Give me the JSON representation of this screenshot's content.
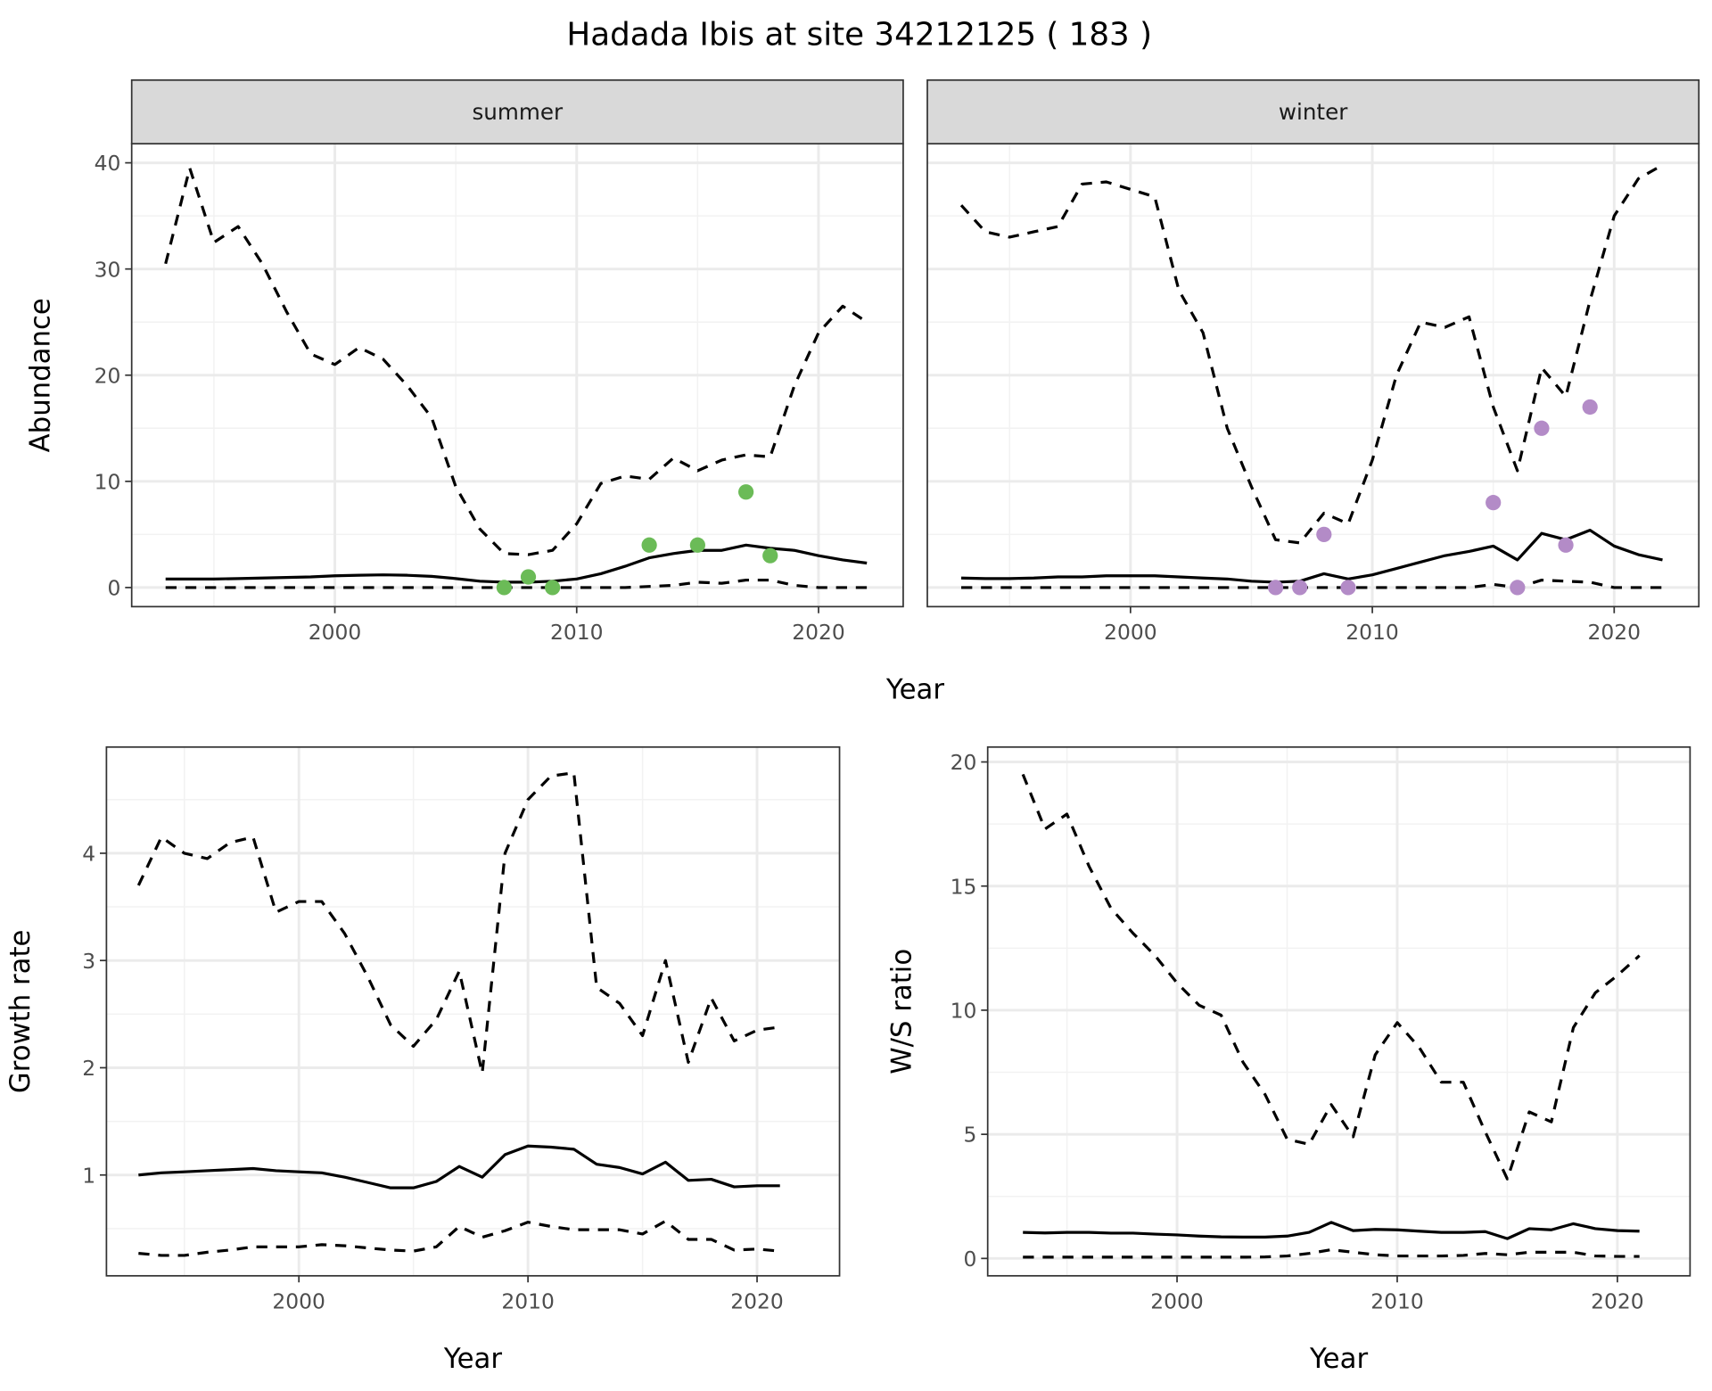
{
  "title": "Hadada Ibis at site 34212125 ( 183 )",
  "chart_data": [
    {
      "type": "line",
      "facet": "summer",
      "xlabel": "Year",
      "ylabel": "Abundance",
      "xlim": [
        1991.6,
        2023.5
      ],
      "ylim": [
        -1.8,
        41.8
      ],
      "xticks": [
        2000,
        2010,
        2020
      ],
      "yticks": [
        0,
        10,
        20,
        30,
        40
      ],
      "x": [
        1993,
        1994,
        1995,
        1996,
        1997,
        1998,
        1999,
        2000,
        2001,
        2002,
        2003,
        2004,
        2005,
        2006,
        2007,
        2008,
        2009,
        2010,
        2011,
        2012,
        2013,
        2014,
        2015,
        2016,
        2017,
        2018,
        2019,
        2020,
        2021,
        2022
      ],
      "series": [
        {
          "name": "upper",
          "style": "dashed",
          "values": [
            30.5,
            39.5,
            32.5,
            34,
            30.5,
            26,
            22,
            21,
            22.6,
            21.5,
            19,
            16,
            9.5,
            5.5,
            3.2,
            3.1,
            3.5,
            6,
            9.8,
            10.5,
            10.2,
            12.2,
            11,
            12,
            12.5,
            12.3,
            19,
            24,
            26.5,
            25
          ]
        },
        {
          "name": "mean",
          "style": "solid",
          "values": [
            0.8,
            0.8,
            0.8,
            0.85,
            0.9,
            0.95,
            1.0,
            1.1,
            1.15,
            1.2,
            1.15,
            1.05,
            0.85,
            0.6,
            0.5,
            0.5,
            0.6,
            0.8,
            1.3,
            2,
            2.8,
            3.2,
            3.5,
            3.5,
            4,
            3.7,
            3.5,
            3,
            2.6,
            2.3
          ]
        },
        {
          "name": "lower",
          "style": "dashed",
          "values": [
            0,
            0,
            0,
            0,
            0,
            0,
            0,
            0,
            0,
            0,
            0,
            0,
            0,
            0,
            0,
            0,
            0,
            0,
            0,
            0,
            0.1,
            0.2,
            0.5,
            0.4,
            0.7,
            0.7,
            0.2,
            0,
            0,
            0
          ]
        }
      ],
      "points": {
        "color": "#6BBB57",
        "x": [
          2007,
          2008,
          2009,
          2013,
          2015,
          2017,
          2018
        ],
        "y": [
          0,
          1,
          0,
          4,
          4,
          9,
          3
        ]
      }
    },
    {
      "type": "line",
      "facet": "winter",
      "xlabel": "Year",
      "ylabel": "Abundance",
      "xlim": [
        1991.6,
        2023.5
      ],
      "ylim": [
        -1.8,
        41.8
      ],
      "xticks": [
        2000,
        2010,
        2020
      ],
      "yticks": [
        0,
        10,
        20,
        30,
        40
      ],
      "x": [
        1993,
        1994,
        1995,
        1996,
        1997,
        1998,
        1999,
        2000,
        2001,
        2002,
        2003,
        2004,
        2005,
        2006,
        2007,
        2008,
        2009,
        2010,
        2011,
        2012,
        2013,
        2014,
        2015,
        2016,
        2017,
        2018,
        2019,
        2020,
        2021,
        2022
      ],
      "series": [
        {
          "name": "upper",
          "style": "dashed",
          "values": [
            36,
            33.5,
            33,
            33.5,
            34,
            38,
            38.2,
            37.5,
            36.8,
            28,
            24,
            15,
            9.5,
            4.5,
            4.2,
            7,
            6,
            12,
            20,
            25,
            24.5,
            25.5,
            17,
            11,
            20.7,
            18,
            27,
            35,
            38.5,
            39.8
          ]
        },
        {
          "name": "mean",
          "style": "solid",
          "values": [
            0.9,
            0.85,
            0.85,
            0.9,
            1.0,
            1.0,
            1.1,
            1.1,
            1.1,
            1.0,
            0.9,
            0.8,
            0.6,
            0.5,
            0.6,
            1.3,
            0.8,
            1.2,
            1.8,
            2.4,
            3.0,
            3.4,
            3.9,
            2.6,
            5.1,
            4.5,
            5.4,
            3.9,
            3.1,
            2.6
          ]
        },
        {
          "name": "lower",
          "style": "dashed",
          "values": [
            0,
            0,
            0,
            0,
            0,
            0,
            0,
            0,
            0,
            0,
            0,
            0,
            0,
            0,
            0,
            0,
            0,
            0,
            0,
            0,
            0,
            0,
            0.3,
            0,
            0.7,
            0.6,
            0.5,
            0,
            0,
            0
          ]
        }
      ],
      "points": {
        "color": "#B38BC7",
        "x": [
          2006,
          2007,
          2008,
          2009,
          2015,
          2016,
          2017,
          2018,
          2019
        ],
        "y": [
          0,
          0,
          5,
          0,
          8,
          0,
          15,
          4,
          17
        ]
      }
    },
    {
      "type": "line",
      "xlabel": "Year",
      "ylabel": "Growth rate",
      "xlim": [
        1991.6,
        2023.6
      ],
      "ylim": [
        0.06,
        4.99
      ],
      "xticks": [
        2000,
        2010,
        2020
      ],
      "yticks": [
        1,
        2,
        3,
        4
      ],
      "x": [
        1993,
        1994,
        1995,
        1996,
        1997,
        1998,
        1999,
        2000,
        2001,
        2002,
        2003,
        2004,
        2005,
        2006,
        2007,
        2008,
        2009,
        2010,
        2011,
        2012,
        2013,
        2014,
        2015,
        2016,
        2017,
        2018,
        2019,
        2020,
        2021
      ],
      "series": [
        {
          "name": "upper",
          "style": "dashed",
          "values": [
            3.7,
            4.15,
            4.0,
            3.95,
            4.1,
            4.15,
            3.45,
            3.55,
            3.55,
            3.25,
            2.85,
            2.4,
            2.2,
            2.45,
            2.9,
            1.95,
            4.0,
            4.5,
            4.72,
            4.75,
            2.75,
            2.6,
            2.3,
            3.0,
            2.05,
            2.65,
            2.25,
            2.35,
            2.38
          ]
        },
        {
          "name": "mean",
          "style": "solid",
          "values": [
            1.0,
            1.02,
            1.03,
            1.04,
            1.05,
            1.06,
            1.04,
            1.03,
            1.02,
            0.98,
            0.93,
            0.88,
            0.88,
            0.94,
            1.08,
            0.98,
            1.19,
            1.27,
            1.26,
            1.24,
            1.1,
            1.07,
            1.01,
            1.12,
            0.95,
            0.96,
            0.89,
            0.9,
            0.9
          ]
        },
        {
          "name": "lower",
          "style": "dashed",
          "values": [
            0.27,
            0.25,
            0.25,
            0.28,
            0.3,
            0.33,
            0.33,
            0.33,
            0.35,
            0.34,
            0.32,
            0.3,
            0.29,
            0.33,
            0.52,
            0.42,
            0.48,
            0.56,
            0.52,
            0.49,
            0.49,
            0.49,
            0.45,
            0.57,
            0.4,
            0.4,
            0.3,
            0.31,
            0.29
          ]
        }
      ]
    },
    {
      "type": "line",
      "xlabel": "Year",
      "ylabel": "W/S ratio",
      "xlim": [
        1991.4,
        2023.3
      ],
      "ylim": [
        -0.7,
        20.6
      ],
      "xticks": [
        2000,
        2010,
        2020
      ],
      "yticks": [
        0,
        5,
        10,
        15,
        20
      ],
      "x": [
        1993,
        1994,
        1995,
        1996,
        1997,
        1998,
        1999,
        2000,
        2001,
        2002,
        2003,
        2004,
        2005,
        2006,
        2007,
        2008,
        2009,
        2010,
        2011,
        2012,
        2013,
        2014,
        2015,
        2016,
        2017,
        2018,
        2019,
        2020,
        2021
      ],
      "series": [
        {
          "name": "upper",
          "style": "dashed",
          "values": [
            19.5,
            17.3,
            17.9,
            15.8,
            14.1,
            13.1,
            12.2,
            11.1,
            10.2,
            9.8,
            7.9,
            6.6,
            4.8,
            4.6,
            6.2,
            4.9,
            8.2,
            9.5,
            8.5,
            7.1,
            7.1,
            5.1,
            3.2,
            5.9,
            5.5,
            9.3,
            10.7,
            11.4,
            12.2
          ]
        },
        {
          "name": "mean",
          "style": "solid",
          "values": [
            1.05,
            1.03,
            1.05,
            1.05,
            1.02,
            1.02,
            0.98,
            0.95,
            0.9,
            0.87,
            0.86,
            0.86,
            0.9,
            1.05,
            1.45,
            1.12,
            1.17,
            1.15,
            1.1,
            1.05,
            1.05,
            1.08,
            0.8,
            1.2,
            1.15,
            1.4,
            1.2,
            1.12,
            1.1
          ]
        },
        {
          "name": "lower",
          "style": "dashed",
          "values": [
            0.05,
            0.05,
            0.05,
            0.05,
            0.05,
            0.05,
            0.05,
            0.05,
            0.05,
            0.05,
            0.05,
            0.06,
            0.1,
            0.2,
            0.35,
            0.25,
            0.15,
            0.1,
            0.1,
            0.1,
            0.12,
            0.2,
            0.15,
            0.25,
            0.25,
            0.25,
            0.1,
            0.08,
            0.08
          ]
        }
      ]
    }
  ]
}
